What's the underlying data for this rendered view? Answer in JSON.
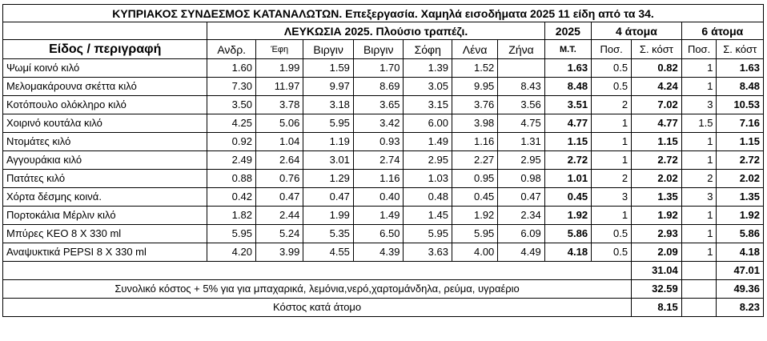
{
  "title": "ΚΥΠΡΙΑΚΟΣ ΣΥΝΔΕΣΜΟΣ ΚΑΤΑΝΑΛΩΤΩΝ.  Επεξεργασία. Χαμηλά εισοδήματα 2025 11 είδη από τα 34.",
  "header_row1": {
    "city_label": "ΛΕΥΚΩΣΙΑ 2025. Πλούσιο τραπέζι.",
    "year_label": "2025",
    "group4_label": "4 άτομα",
    "group6_label": "6 άτομα"
  },
  "header_row2": {
    "item_label": "Είδος / περιγραφή",
    "stores": [
      "Ανδρ.",
      "Έφη",
      "Βιργιν",
      "Βιργιν",
      "Σόφη",
      "Λένα",
      "Ζήνα"
    ],
    "avg_label": "Μ.Τ.",
    "qty4_label": "Ποσ.",
    "cost4_label": "Σ. κόστ",
    "qty6_label": "Ποσ.",
    "cost6_label": "Σ. κόστ"
  },
  "rows": [
    {
      "item": "Ψωμί κοινό κιλό",
      "prices": [
        "1.60",
        "1.99",
        "1.59",
        "1.70",
        "1.39",
        "1.52",
        ""
      ],
      "avg": "1.63",
      "q4": "0.5",
      "c4": "0.82",
      "q6": "1",
      "c6": "1.63"
    },
    {
      "item": "Μελομακάρουνα σκέττα κιλό",
      "prices": [
        "7.30",
        "11.97",
        "9.97",
        "8.69",
        "3.05",
        "9.95",
        "8.43"
      ],
      "avg": "8.48",
      "q4": "0.5",
      "c4": "4.24",
      "q6": "1",
      "c6": "8.48"
    },
    {
      "item": "Κοτόπουλο ολόκληρο κιλό",
      "prices": [
        "3.50",
        "3.78",
        "3.18",
        "3.65",
        "3.15",
        "3.76",
        "3.56"
      ],
      "avg": "3.51",
      "q4": "2",
      "c4": "7.02",
      "q6": "3",
      "c6": "10.53"
    },
    {
      "item": "Χοιρινό κουτάλα κιλό",
      "prices": [
        "4.25",
        "5.06",
        "5.95",
        "3.42",
        "6.00",
        "3.98",
        "4.75"
      ],
      "avg": "4.77",
      "q4": "1",
      "c4": "4.77",
      "q6": "1.5",
      "c6": "7.16"
    },
    {
      "item": "Ντομάτες κιλό",
      "prices": [
        "0.92",
        "1.04",
        "1.19",
        "0.93",
        "1.49",
        "1.16",
        "1.31"
      ],
      "avg": "1.15",
      "q4": "1",
      "c4": "1.15",
      "q6": "1",
      "c6": "1.15"
    },
    {
      "item": "Αγγουράκια κιλό",
      "prices": [
        "2.49",
        "2.64",
        "3.01",
        "2.74",
        "2.95",
        "2.27",
        "2.95"
      ],
      "avg": "2.72",
      "q4": "1",
      "c4": "2.72",
      "q6": "1",
      "c6": "2.72"
    },
    {
      "item": "Πατάτες κιλό",
      "prices": [
        "0.88",
        "0.76",
        "1.29",
        "1.16",
        "1.03",
        "0.95",
        "0.98"
      ],
      "avg": "1.01",
      "q4": "2",
      "c4": "2.02",
      "q6": "2",
      "c6": "2.02"
    },
    {
      "item": "Χόρτα δέσμης κοινά.",
      "prices": [
        "0.42",
        "0.47",
        "0.47",
        "0.40",
        "0.48",
        "0.45",
        "0.47"
      ],
      "avg": "0.45",
      "q4": "3",
      "c4": "1.35",
      "q6": "3",
      "c6": "1.35"
    },
    {
      "item": "Πορτοκάλια Μέρλιν κιλό",
      "prices": [
        "1.82",
        "2.44",
        "1.99",
        "1.49",
        "1.45",
        "1.92",
        "2.34"
      ],
      "avg": "1.92",
      "q4": "1",
      "c4": "1.92",
      "q6": "1",
      "c6": "1.92"
    },
    {
      "item": "Μπύρες ΚΕΟ 8 Χ 330 ml",
      "prices": [
        "5.95",
        "5.24",
        "5.35",
        "6.50",
        "5.95",
        "5.95",
        "6.09"
      ],
      "avg": "5.86",
      "q4": "0.5",
      "c4": "2.93",
      "q6": "1",
      "c6": "5.86"
    },
    {
      "item": "Αναψυκτικά PEPSI 8 Χ 330 ml",
      "prices": [
        "4.20",
        "3.99",
        "4.55",
        "4.39",
        "3.63",
        "4.00",
        "4.49"
      ],
      "avg": "4.18",
      "q4": "0.5",
      "c4": "2.09",
      "q6": "1",
      "c6": "4.18"
    }
  ],
  "totals": {
    "c4": "31.04",
    "c6": "47.01"
  },
  "total_plus": {
    "label": "Συνολικό κόστος + 5% για για μπαχαρικά, λεμόνια,νερό,χαρτομάνδηλα, ρεύμα, υγραέριο",
    "c4": "32.59",
    "c6": "49.36"
  },
  "per_person": {
    "label": "Κόστος κατά άτομο",
    "c4": "8.15",
    "c6": "8.23"
  }
}
